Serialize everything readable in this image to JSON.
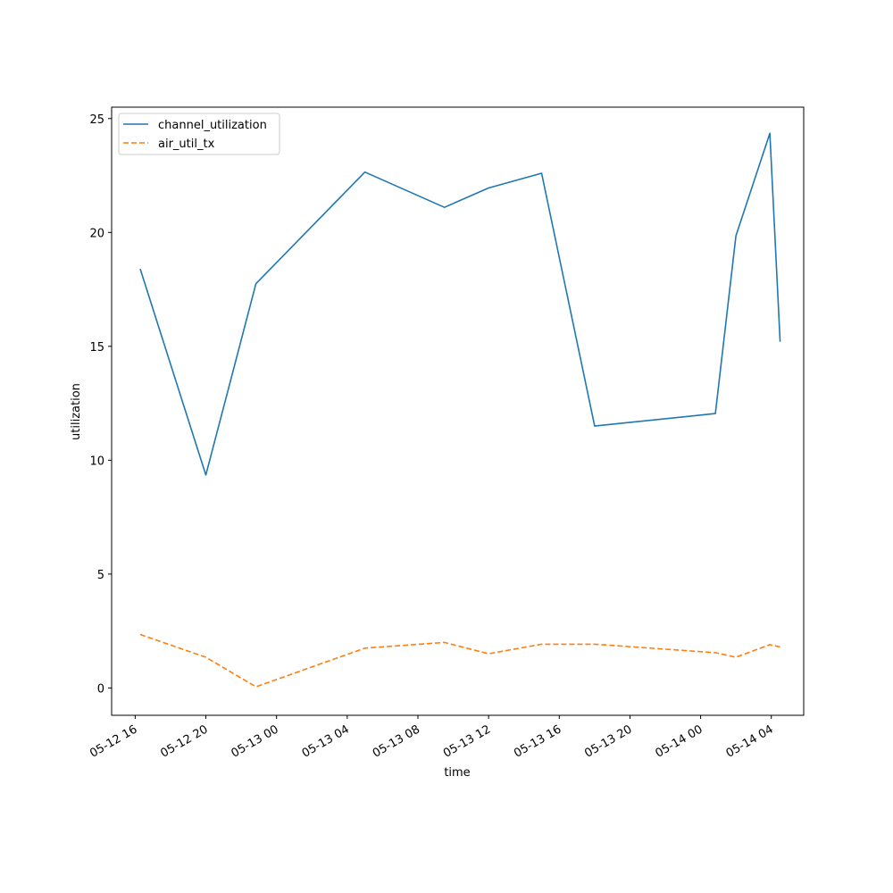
{
  "chart_data": {
    "type": "line",
    "title": "",
    "xlabel": "time",
    "ylabel": "utilization",
    "x": [
      "2024-05-12T16:17",
      "2024-05-12T20:00",
      "2024-05-12T22:50",
      "2024-05-13T05:00",
      "2024-05-13T09:30",
      "2024-05-13T12:00",
      "2024-05-13T15:00",
      "2024-05-13T18:00",
      "2024-05-14T00:50",
      "2024-05-14T02:00",
      "2024-05-14T03:55",
      "2024-05-14T04:30"
    ],
    "x_ticks": [
      {
        "t": "2024-05-12T16:00",
        "label": "05-12 16"
      },
      {
        "t": "2024-05-12T20:00",
        "label": "05-12 20"
      },
      {
        "t": "2024-05-13T00:00",
        "label": "05-13 00"
      },
      {
        "t": "2024-05-13T04:00",
        "label": "05-13 04"
      },
      {
        "t": "2024-05-13T08:00",
        "label": "05-13 08"
      },
      {
        "t": "2024-05-13T12:00",
        "label": "05-13 12"
      },
      {
        "t": "2024-05-13T16:00",
        "label": "05-13 16"
      },
      {
        "t": "2024-05-13T20:00",
        "label": "05-13 20"
      },
      {
        "t": "2024-05-14T00:00",
        "label": "05-14 00"
      },
      {
        "t": "2024-05-14T04:00",
        "label": "05-14 04"
      }
    ],
    "xlim": [
      "2024-05-12T14:40",
      "2024-05-14T05:50"
    ],
    "y_ticks": [
      0,
      5,
      10,
      15,
      20,
      25
    ],
    "ylim": [
      -1.2,
      25.5
    ],
    "grid": false,
    "legend_position": "upper-left",
    "series": [
      {
        "name": "channel_utilization",
        "color": "#1f77b4",
        "style": "solid",
        "values": [
          18.4,
          9.35,
          17.75,
          22.65,
          21.1,
          21.95,
          22.6,
          11.5,
          12.05,
          19.85,
          24.35,
          15.2
        ]
      },
      {
        "name": "air_util_tx",
        "color": "#ff7f0e",
        "style": "dashed",
        "values": [
          2.35,
          1.35,
          0.05,
          1.75,
          2.0,
          1.5,
          1.92,
          1.92,
          1.55,
          1.35,
          1.9,
          1.8
        ]
      }
    ]
  }
}
